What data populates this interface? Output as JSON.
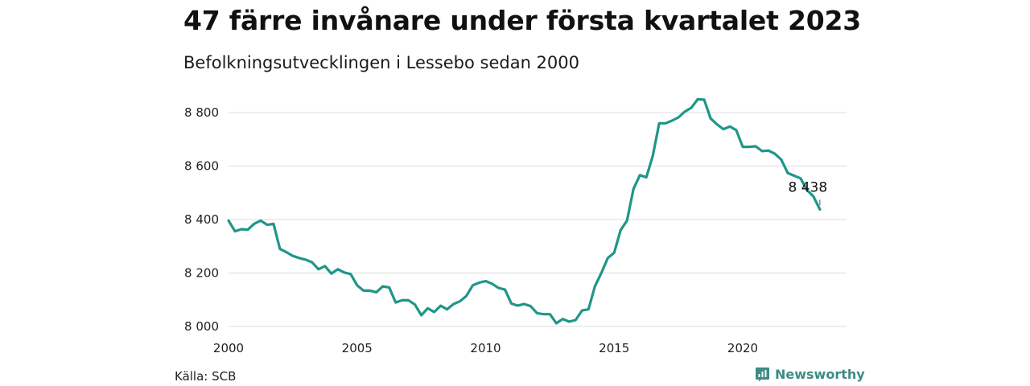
{
  "colors": {
    "line": "#1f9689",
    "grid": "#dcdcdc",
    "brand": "#3e8c84"
  },
  "footer": {
    "source": "Källa: SCB",
    "brand": "Newsworthy",
    "brand_icon": "newsworthy-logo-icon"
  },
  "chart_data": {
    "type": "line",
    "title": "47 färre invånare under första kvartalet 2023",
    "subtitle": "Befolkningsutvecklingen i Lessebo sedan 2000",
    "xlabel": "",
    "ylabel": "",
    "xlim": [
      2000,
      2023.25
    ],
    "ylim": [
      8000,
      8880
    ],
    "x_ticks": [
      2000,
      2005,
      2010,
      2015,
      2020
    ],
    "x_tick_labels": [
      "2000",
      "2005",
      "2010",
      "2015",
      "2020"
    ],
    "y_ticks": [
      8000,
      8200,
      8400,
      8600,
      8800
    ],
    "y_tick_labels": [
      "8 000",
      "8 200",
      "8 400",
      "8 600",
      "8 800"
    ],
    "grid": "horizontal",
    "legend": "none",
    "annotation": {
      "x": 2023.0,
      "y": 8438,
      "label": "8 438"
    },
    "series": [
      {
        "x": [
          2000.0,
          2000.25,
          2000.5,
          2000.75,
          2001.0,
          2001.25,
          2001.5,
          2001.75,
          2002.0,
          2002.25,
          2002.5,
          2002.75,
          2003.0,
          2003.25,
          2003.5,
          2003.75,
          2004.0,
          2004.25,
          2004.5,
          2004.75,
          2005.0,
          2005.25,
          2005.5,
          2005.75,
          2006.0,
          2006.25,
          2006.5,
          2006.75,
          2007.0,
          2007.25,
          2007.5,
          2007.75,
          2008.0,
          2008.25,
          2008.5,
          2008.75,
          2009.0,
          2009.25,
          2009.5,
          2009.75,
          2010.0,
          2010.25,
          2010.5,
          2010.75,
          2011.0,
          2011.25,
          2011.5,
          2011.75,
          2012.0,
          2012.25,
          2012.5,
          2012.75,
          2013.0,
          2013.25,
          2013.5,
          2013.75,
          2014.0,
          2014.25,
          2014.5,
          2014.75,
          2015.0,
          2015.25,
          2015.5,
          2015.75,
          2016.0,
          2016.25,
          2016.5,
          2016.75,
          2017.0,
          2017.25,
          2017.5,
          2017.75,
          2018.0,
          2018.25,
          2018.5,
          2018.75,
          2019.0,
          2019.25,
          2019.5,
          2019.75,
          2020.0,
          2020.25,
          2020.5,
          2020.75,
          2021.0,
          2021.25,
          2021.5,
          2021.75,
          2022.0,
          2022.25,
          2022.5,
          2022.75,
          2023.0
        ],
        "values": [
          8396,
          8356,
          8364,
          8362,
          8384,
          8396,
          8380,
          8384,
          8290,
          8278,
          8264,
          8256,
          8250,
          8240,
          8214,
          8226,
          8198,
          8214,
          8202,
          8196,
          8154,
          8134,
          8134,
          8128,
          8150,
          8146,
          8090,
          8098,
          8098,
          8082,
          8042,
          8068,
          8054,
          8078,
          8064,
          8084,
          8094,
          8114,
          8154,
          8164,
          8170,
          8160,
          8144,
          8138,
          8086,
          8078,
          8084,
          8076,
          8050,
          8046,
          8046,
          8012,
          8028,
          8018,
          8024,
          8060,
          8064,
          8150,
          8200,
          8256,
          8276,
          8360,
          8396,
          8514,
          8566,
          8558,
          8638,
          8760,
          8760,
          8770,
          8782,
          8804,
          8818,
          8850,
          8848,
          8778,
          8756,
          8738,
          8748,
          8734,
          8672,
          8672,
          8674,
          8656,
          8658,
          8646,
          8624,
          8574,
          8564,
          8554,
          8510,
          8486,
          8438
        ]
      }
    ]
  }
}
